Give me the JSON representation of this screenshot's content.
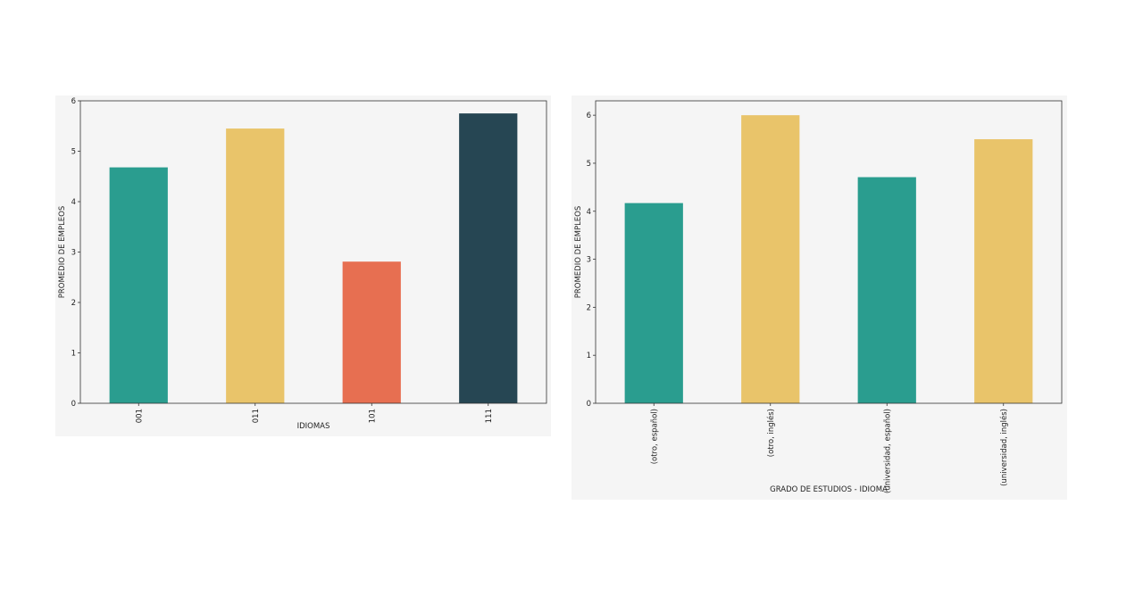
{
  "chart_data": [
    {
      "type": "bar",
      "title": "",
      "xlabel": "IDIOMAS",
      "ylabel": "PROMEDIO DE EMPLEOS",
      "categories": [
        "001",
        "011",
        "101",
        "111"
      ],
      "values": [
        4.68,
        5.45,
        2.81,
        5.75
      ],
      "colors": [
        "#2a9d8f",
        "#e9c46a",
        "#e76f51",
        "#264653"
      ],
      "ylim": [
        0,
        6
      ],
      "yticks": [
        0,
        1,
        2,
        3,
        4,
        5,
        6
      ],
      "grid": false,
      "legend": "none"
    },
    {
      "type": "bar",
      "title": "",
      "xlabel": "GRADO DE ESTUDIOS - IDIOMA",
      "ylabel": "PROMEDIO DE EMPLEOS",
      "categories": [
        "(otro, español)",
        "(otro, inglés)",
        "(universidad, español)",
        "(universidad, inglés)"
      ],
      "values": [
        4.17,
        6.0,
        4.71,
        5.5
      ],
      "colors": [
        "#2a9d8f",
        "#e9c46a",
        "#2a9d8f",
        "#e9c46a"
      ],
      "ylim": [
        0,
        6.3
      ],
      "yticks": [
        0,
        1,
        2,
        3,
        4,
        5,
        6
      ],
      "grid": false,
      "legend": "none"
    }
  ]
}
